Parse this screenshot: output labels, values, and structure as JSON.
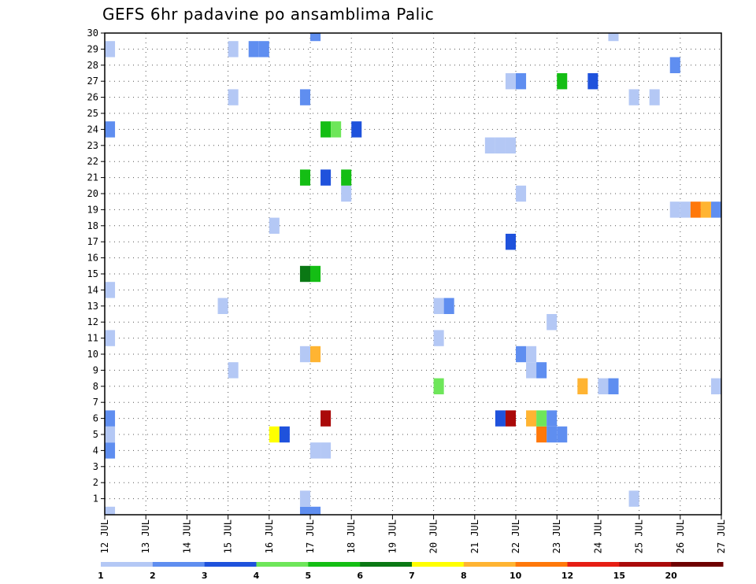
{
  "chart_data": {
    "type": "heatmap",
    "title": "GEFS 6hr padavine po ansamblima Palic",
    "x_axis": {
      "unit": "day of July",
      "range": [
        12,
        27
      ],
      "tick_values": [
        12,
        13,
        14,
        15,
        16,
        17,
        18,
        19,
        20,
        21,
        22,
        23,
        24,
        25,
        26,
        27
      ],
      "tick_labels": [
        "12 JUL",
        "13 JUL",
        "14 JUL",
        "15 JUL",
        "16 JUL",
        "17 JUL",
        "18 JUL",
        "19 JUL",
        "20 JUL",
        "21 JUL",
        "22 JUL",
        "23 JUL",
        "24 JUL",
        "25 JUL",
        "26 JUL",
        "27 JUL"
      ]
    },
    "y_axis": {
      "range": [
        0,
        30
      ],
      "tick_values": [
        1,
        2,
        3,
        4,
        5,
        6,
        7,
        8,
        9,
        10,
        11,
        12,
        13,
        14,
        15,
        16,
        17,
        18,
        19,
        20,
        21,
        22,
        23,
        24,
        25,
        26,
        27,
        28,
        29,
        30
      ],
      "tick_labels": [
        "1",
        "2",
        "3",
        "4",
        "5",
        "6",
        "7",
        "8",
        "9",
        "10",
        "11",
        "12",
        "13",
        "14",
        "15",
        "16",
        "17",
        "18",
        "19",
        "20",
        "21",
        "22",
        "23",
        "24",
        "25",
        "26",
        "27",
        "28",
        "29",
        "30"
      ]
    },
    "grid": "dotted",
    "colorbar": {
      "labels": [
        "1",
        "2",
        "3",
        "4",
        "5",
        "6",
        "7",
        "8",
        "10",
        "12",
        "15",
        "20"
      ],
      "colors": [
        "#b4c8f5",
        "#5f8ef0",
        "#1f52dc",
        "#6ee65a",
        "#14be14",
        "#0a7814",
        "#ffff00",
        "#ffb432",
        "#ff780a",
        "#e61e14",
        "#aa0a0a",
        "#6e0000"
      ]
    },
    "cell_width_days": 0.25,
    "cells": [
      {
        "x": 12.0,
        "y": 0,
        "bin": 0
      },
      {
        "x": 12.0,
        "y": 4,
        "bin": 1
      },
      {
        "x": 12.0,
        "y": 5,
        "bin": 0
      },
      {
        "x": 12.0,
        "y": 6,
        "bin": 1
      },
      {
        "x": 12.0,
        "y": 11,
        "bin": 0
      },
      {
        "x": 12.0,
        "y": 14,
        "bin": 0
      },
      {
        "x": 12.0,
        "y": 24,
        "bin": 1
      },
      {
        "x": 12.0,
        "y": 29,
        "bin": 0
      },
      {
        "x": 14.75,
        "y": 13,
        "bin": 0
      },
      {
        "x": 15.0,
        "y": 9,
        "bin": 0
      },
      {
        "x": 15.0,
        "y": 26,
        "bin": 0
      },
      {
        "x": 15.0,
        "y": 29,
        "bin": 0
      },
      {
        "x": 15.5,
        "y": 29,
        "bin": 1
      },
      {
        "x": 15.75,
        "y": 29,
        "bin": 1
      },
      {
        "x": 16.0,
        "y": 18,
        "bin": 0
      },
      {
        "x": 16.0,
        "y": 5,
        "bin": 6
      },
      {
        "x": 16.25,
        "y": 5,
        "bin": 2
      },
      {
        "x": 16.75,
        "y": 0,
        "bin": 1
      },
      {
        "x": 16.75,
        "y": 1,
        "bin": 0
      },
      {
        "x": 16.75,
        "y": 10,
        "bin": 0
      },
      {
        "x": 16.75,
        "y": 15,
        "bin": 5
      },
      {
        "x": 16.75,
        "y": 21,
        "bin": 4
      },
      {
        "x": 16.75,
        "y": 26,
        "bin": 1
      },
      {
        "x": 17.0,
        "y": 0,
        "bin": 1
      },
      {
        "x": 17.0,
        "y": 4,
        "bin": 0
      },
      {
        "x": 17.0,
        "y": 10,
        "bin": 7
      },
      {
        "x": 17.0,
        "y": 15,
        "bin": 4
      },
      {
        "x": 17.0,
        "y": 30,
        "bin": 1
      },
      {
        "x": 17.25,
        "y": 4,
        "bin": 0
      },
      {
        "x": 17.25,
        "y": 6,
        "bin": 10
      },
      {
        "x": 17.25,
        "y": 21,
        "bin": 2
      },
      {
        "x": 17.25,
        "y": 24,
        "bin": 4
      },
      {
        "x": 17.5,
        "y": 24,
        "bin": 3
      },
      {
        "x": 17.75,
        "y": 20,
        "bin": 0
      },
      {
        "x": 17.75,
        "y": 21,
        "bin": 4
      },
      {
        "x": 18.0,
        "y": 24,
        "bin": 2
      },
      {
        "x": 20.0,
        "y": 8,
        "bin": 3
      },
      {
        "x": 20.0,
        "y": 11,
        "bin": 0
      },
      {
        "x": 20.0,
        "y": 13,
        "bin": 0
      },
      {
        "x": 20.25,
        "y": 13,
        "bin": 1
      },
      {
        "x": 21.25,
        "y": 23,
        "bin": 0
      },
      {
        "x": 21.5,
        "y": 23,
        "bin": 0
      },
      {
        "x": 21.75,
        "y": 23,
        "bin": 0
      },
      {
        "x": 21.5,
        "y": 6,
        "bin": 2
      },
      {
        "x": 21.75,
        "y": 6,
        "bin": 10
      },
      {
        "x": 21.75,
        "y": 17,
        "bin": 2
      },
      {
        "x": 21.75,
        "y": 27,
        "bin": 0
      },
      {
        "x": 22.0,
        "y": 10,
        "bin": 1
      },
      {
        "x": 22.0,
        "y": 20,
        "bin": 0
      },
      {
        "x": 22.0,
        "y": 27,
        "bin": 1
      },
      {
        "x": 22.25,
        "y": 6,
        "bin": 7
      },
      {
        "x": 22.25,
        "y": 9,
        "bin": 0
      },
      {
        "x": 22.25,
        "y": 10,
        "bin": 0
      },
      {
        "x": 22.5,
        "y": 5,
        "bin": 8
      },
      {
        "x": 22.5,
        "y": 6,
        "bin": 3
      },
      {
        "x": 22.5,
        "y": 9,
        "bin": 1
      },
      {
        "x": 22.75,
        "y": 5,
        "bin": 1
      },
      {
        "x": 22.75,
        "y": 6,
        "bin": 1
      },
      {
        "x": 22.75,
        "y": 12,
        "bin": 0
      },
      {
        "x": 23.0,
        "y": 5,
        "bin": 1
      },
      {
        "x": 23.0,
        "y": 27,
        "bin": 4
      },
      {
        "x": 23.5,
        "y": 8,
        "bin": 7
      },
      {
        "x": 23.75,
        "y": 27,
        "bin": 2
      },
      {
        "x": 24.0,
        "y": 8,
        "bin": 0
      },
      {
        "x": 24.25,
        "y": 8,
        "bin": 1
      },
      {
        "x": 24.25,
        "y": 30,
        "bin": 0
      },
      {
        "x": 24.75,
        "y": 1,
        "bin": 0
      },
      {
        "x": 24.75,
        "y": 26,
        "bin": 0
      },
      {
        "x": 25.25,
        "y": 26,
        "bin": 0
      },
      {
        "x": 25.75,
        "y": 19,
        "bin": 0
      },
      {
        "x": 25.75,
        "y": 28,
        "bin": 1
      },
      {
        "x": 26.0,
        "y": 19,
        "bin": 0
      },
      {
        "x": 26.25,
        "y": 19,
        "bin": 8
      },
      {
        "x": 26.5,
        "y": 19,
        "bin": 7
      },
      {
        "x": 26.75,
        "y": 19,
        "bin": 1
      },
      {
        "x": 26.75,
        "y": 8,
        "bin": 0
      }
    ]
  }
}
